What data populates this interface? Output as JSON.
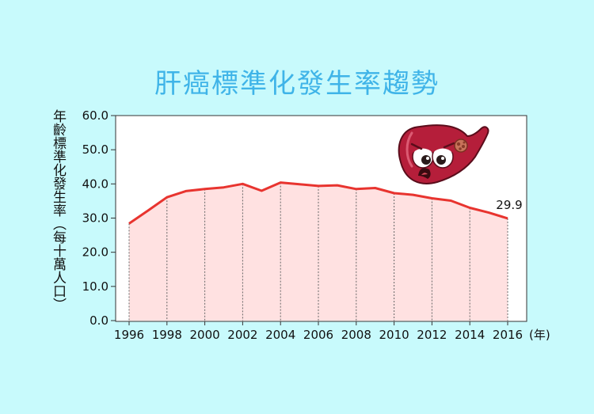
{
  "chart_data": {
    "type": "area",
    "title": "肝癌標準化發生率趨勢",
    "ylabel": "年齡標準化發生率（每十萬人口）",
    "xunit": "(年)",
    "x": [
      1996,
      1997,
      1998,
      1999,
      2000,
      2001,
      2002,
      2003,
      2004,
      2005,
      2006,
      2007,
      2008,
      2009,
      2010,
      2011,
      2012,
      2013,
      2014,
      2015,
      2016
    ],
    "values": [
      28.4,
      32.2,
      36.1,
      37.9,
      38.5,
      39.0,
      40.0,
      38.0,
      40.4,
      39.9,
      39.4,
      39.6,
      38.5,
      38.8,
      37.3,
      36.8,
      35.8,
      35.1,
      33.0,
      31.6,
      29.9
    ],
    "xticks": [
      "1996",
      "1998",
      "2000",
      "2002",
      "2004",
      "2006",
      "2008",
      "2010",
      "2012",
      "2014",
      "2016"
    ],
    "yticks": [
      "0.0",
      "10.0",
      "20.0",
      "30.0",
      "40.0",
      "50.0",
      "60.0"
    ],
    "ylim": [
      0,
      60
    ],
    "annotation": {
      "x": 2016,
      "text": "29.9"
    },
    "line_color": "#e8342f",
    "fill_color": "#ffe1e1",
    "grid": "vertical dotted",
    "illustration": "liver-mascot"
  }
}
